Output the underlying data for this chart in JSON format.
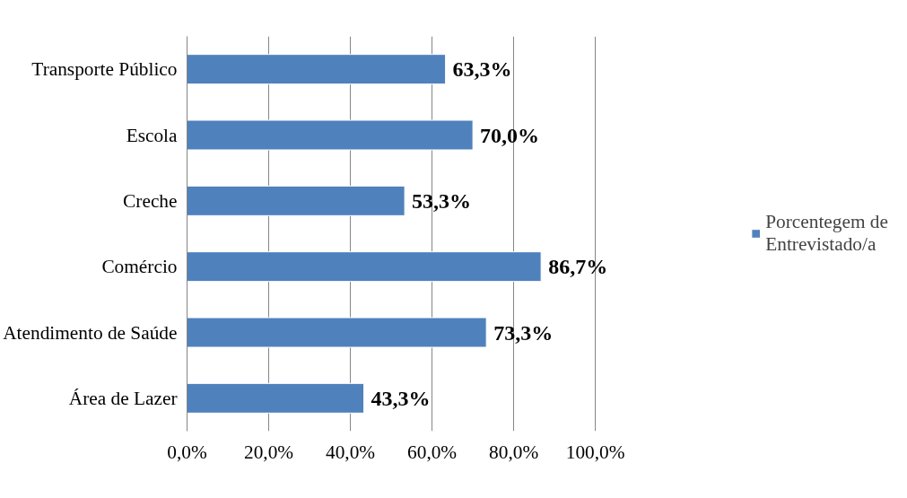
{
  "chart_data": {
    "type": "bar",
    "orientation": "horizontal",
    "categories": [
      "Transporte Público",
      "Escola",
      "Creche",
      "Comércio",
      "Atendimento de Saúde",
      "Área de Lazer"
    ],
    "series": [
      {
        "name": "Porcentegem de Entrevistado/a",
        "color": "#4f81bd",
        "values": [
          63.3,
          70.0,
          53.3,
          86.7,
          73.3,
          43.3
        ],
        "value_labels": [
          "63,3%",
          "70,0%",
          "53,3%",
          "86,7%",
          "73,3%",
          "43,3%"
        ]
      }
    ],
    "xlim": [
      0,
      100
    ],
    "xticks": [
      {
        "value": 0,
        "label": "0,0%"
      },
      {
        "value": 20,
        "label": "20,0%"
      },
      {
        "value": 40,
        "label": "40,0%"
      },
      {
        "value": 60,
        "label": "60,0%"
      },
      {
        "value": 80,
        "label": "80,0%"
      },
      {
        "value": 100,
        "label": "100,0%"
      }
    ],
    "grid": "x",
    "legend": "right"
  }
}
